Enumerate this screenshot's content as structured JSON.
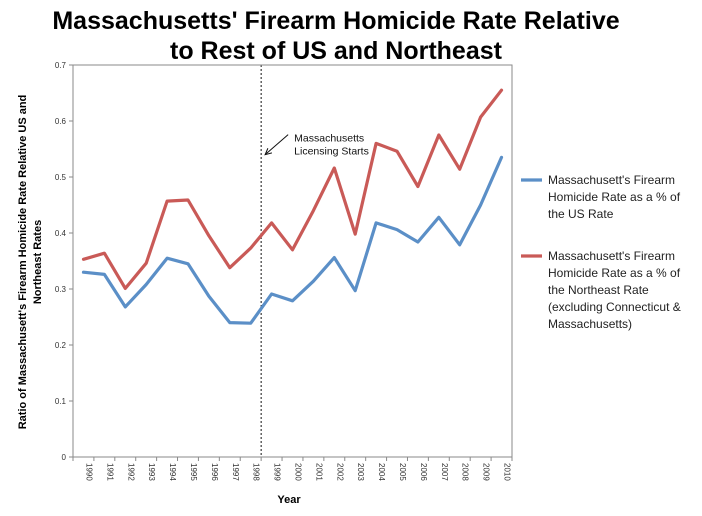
{
  "chart_data": {
    "type": "line",
    "title_line1": "Massachusetts' Firearm Homicide Rate Relative",
    "title_line2": "to Rest of US and Northeast",
    "xlabel": "Year",
    "ylabel_line1": "Ratio of Massachusett's Firearm Homicide Rate Relative US and",
    "ylabel_line2": "Northeast Rates",
    "ylim": [
      0,
      0.7
    ],
    "yticks": [
      0,
      0.1,
      0.2,
      0.3,
      0.4,
      0.5,
      0.6,
      0.7
    ],
    "ytick_labels": [
      "0",
      "0.1",
      "0.2",
      "0.3",
      "0.4",
      "0.5",
      "0.6",
      "0.7"
    ],
    "grid": false,
    "legend_position": "right",
    "x": [
      "1990",
      "1991",
      "1992",
      "1993",
      "1994",
      "1995",
      "1996",
      "1997",
      "1998",
      "1999",
      "2000",
      "2001",
      "2002",
      "2003",
      "2004",
      "2005",
      "2006",
      "2007",
      "2008",
      "2009",
      "2010"
    ],
    "series": [
      {
        "legend_lines": [
          "Massachusett's Firearm",
          "Homicide Rate as a % of",
          "the US Rate"
        ],
        "color": "#5B8FC7",
        "values": [
          0.33,
          0.326,
          0.268,
          0.308,
          0.355,
          0.345,
          0.287,
          0.24,
          0.239,
          0.291,
          0.279,
          0.314,
          0.356,
          0.297,
          0.418,
          0.406,
          0.384,
          0.428,
          0.379,
          0.45,
          0.535
        ]
      },
      {
        "legend_lines": [
          "Massachusett's Firearm",
          "Homicide Rate as a % of",
          "the Northeast Rate",
          "(excluding Connecticut &",
          "Massachusetts)"
        ],
        "color": "#C95A57",
        "values": [
          0.353,
          0.364,
          0.301,
          0.346,
          0.457,
          0.459,
          0.395,
          0.338,
          0.373,
          0.418,
          0.37,
          0.44,
          0.516,
          0.398,
          0.56,
          0.546,
          0.483,
          0.575,
          0.514,
          0.607,
          0.655
        ]
      }
    ],
    "annotation": {
      "lines": [
        "Massachusetts",
        "Licensing Starts"
      ],
      "marker_x": "1998.5"
    }
  }
}
